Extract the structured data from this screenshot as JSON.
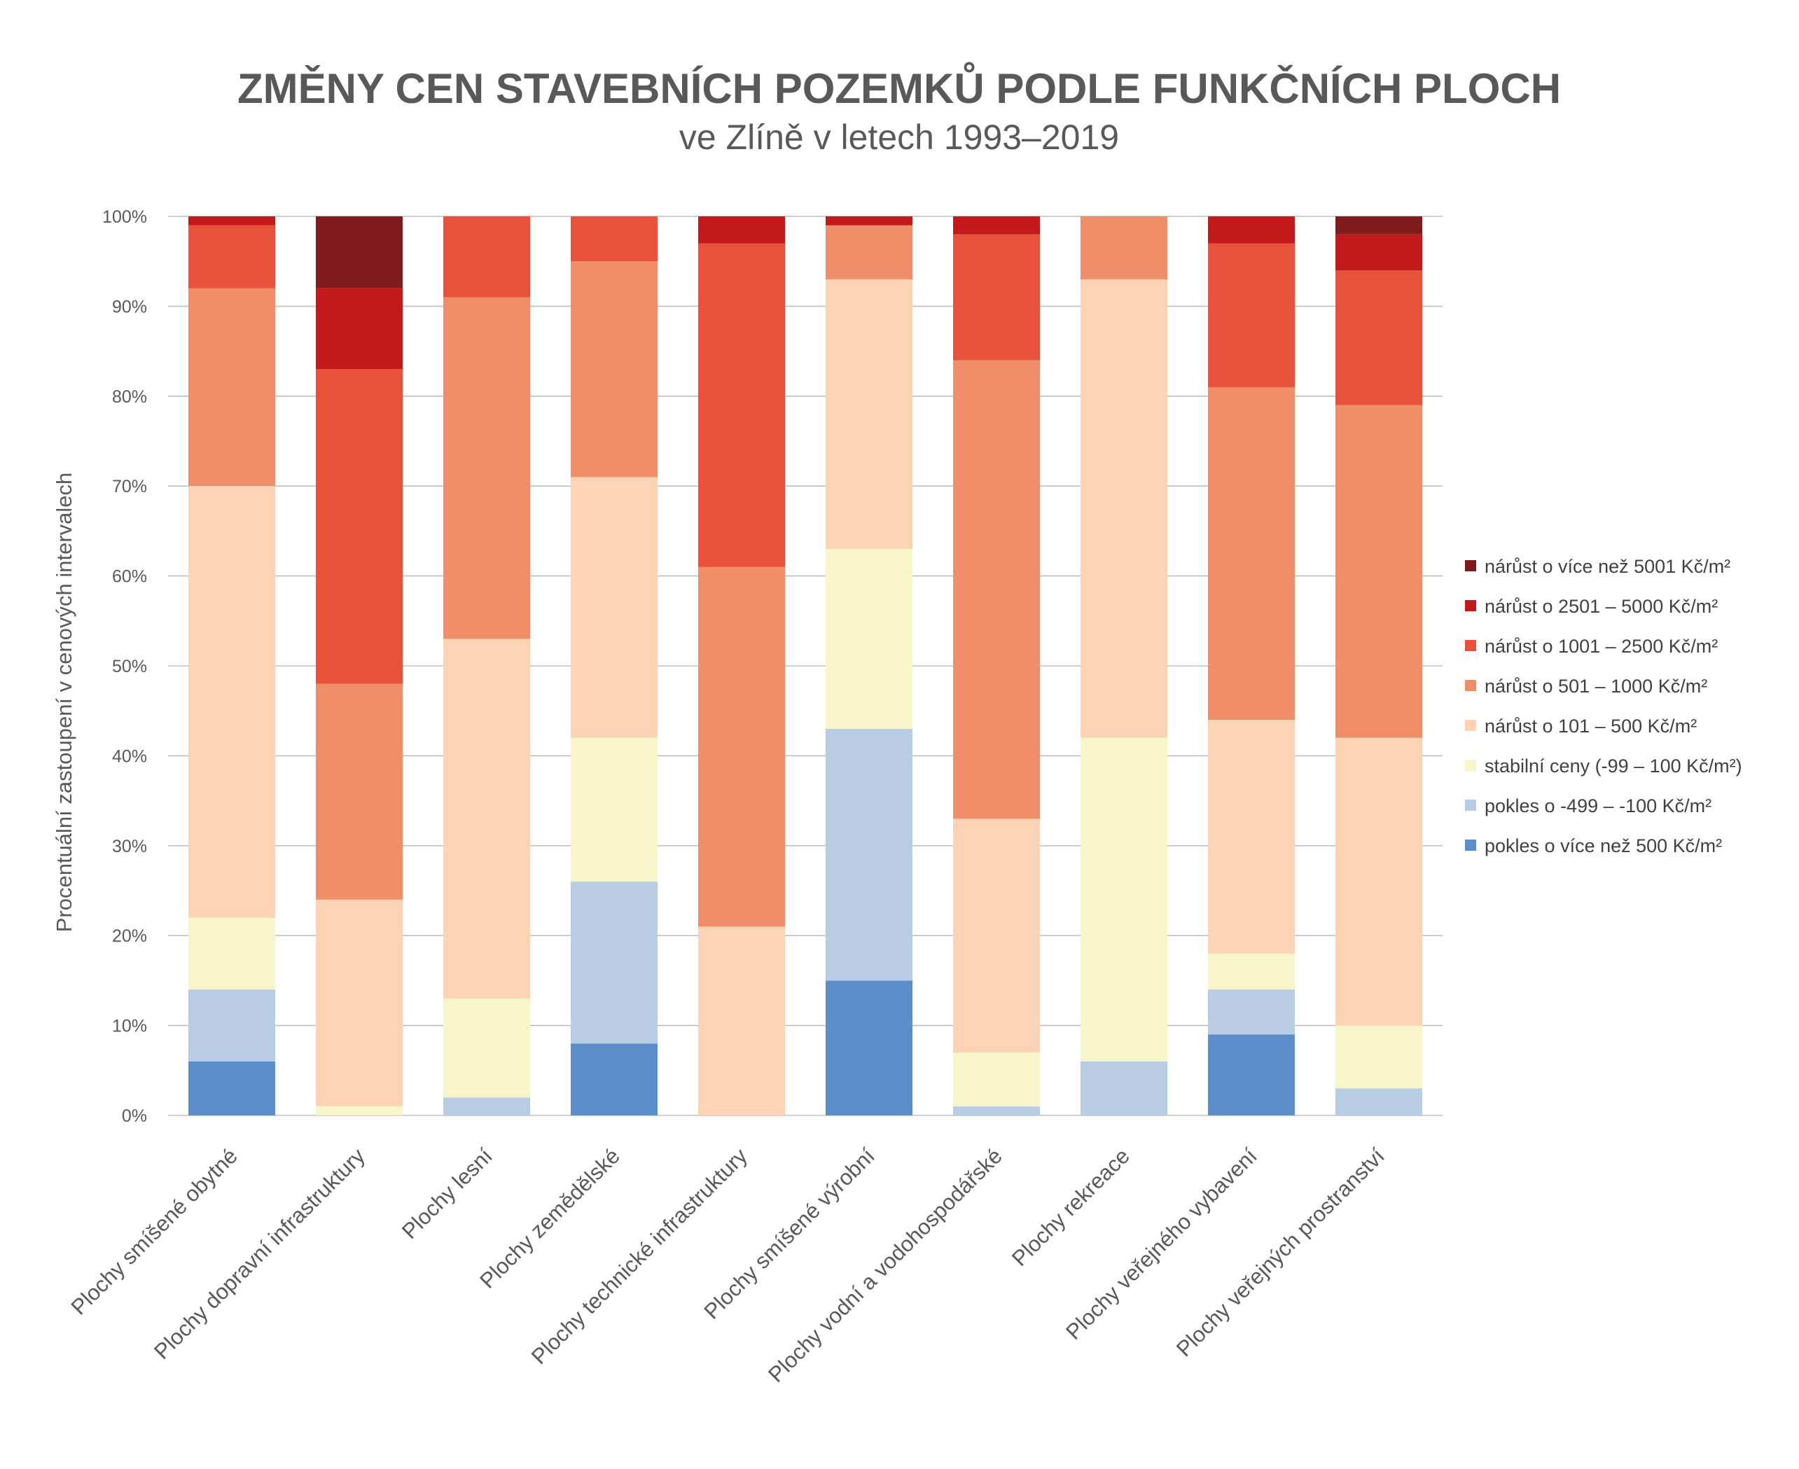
{
  "colors": {
    "text": "#595959",
    "grid": "#bfbfbf",
    "series": [
      "#5b8ecb",
      "#b8cce4",
      "#f8f5cb",
      "#fcd3b4",
      "#f08e69",
      "#e8513a",
      "#c3191b",
      "#7f1a1d"
    ]
  },
  "chart_data": {
    "type": "bar",
    "stacked": true,
    "percent": true,
    "title": "ZMĚNY CEN STAVEBNÍCH POZEMKŮ PODLE FUNKČNÍCH PLOCH",
    "subtitle": "ve Zlíně v letech 1993–2019",
    "ylabel": "Procentuální zastoupení v cenových intervalech",
    "xlabel": "",
    "ylim": [
      0,
      100
    ],
    "yticks": [
      "0%",
      "10%",
      "20%",
      "30%",
      "40%",
      "50%",
      "60%",
      "70%",
      "80%",
      "90%",
      "100%"
    ],
    "grid": true,
    "legend_position": "right",
    "categories": [
      "Plochy smíšené obytné",
      "Plochy dopravní infrastruktury",
      "Plochy lesní",
      "Plochy zemědělské",
      "Plochy technické infrastruktury",
      "Plochy smíšené výrobní",
      "Plochy vodní a vodohospodářské",
      "Plochy rekreace",
      "Plochy veřejného vybavení",
      "Plochy veřejných prostranství"
    ],
    "series": [
      {
        "name": "pokles o více než 500 Kč/m²",
        "values": [
          6,
          0,
          0,
          8,
          0,
          15,
          0,
          0,
          9,
          0
        ]
      },
      {
        "name": "pokles o -499 – -100 Kč/m²",
        "values": [
          8,
          0,
          2,
          18,
          0,
          28,
          1,
          6,
          5,
          3
        ]
      },
      {
        "name": "stabilní ceny (-99 – 100 Kč/m²)",
        "values": [
          8,
          1,
          11,
          16,
          0,
          20,
          6,
          36,
          4,
          7
        ]
      },
      {
        "name": "nárůst o 101 – 500 Kč/m²",
        "values": [
          48,
          23,
          40,
          29,
          21,
          30,
          26,
          51,
          26,
          32
        ]
      },
      {
        "name": "nárůst o 501 – 1000 Kč/m²",
        "values": [
          22,
          24,
          38,
          24,
          40,
          6,
          51,
          7,
          37,
          37
        ]
      },
      {
        "name": "nárůst o 1001 – 2500 Kč/m²",
        "values": [
          7,
          35,
          9,
          5,
          36,
          0,
          14,
          0,
          16,
          15
        ]
      },
      {
        "name": "nárůst o 2501 – 5000 Kč/m²",
        "values": [
          1,
          9,
          0,
          0,
          3,
          1,
          2,
          0,
          3,
          4
        ]
      },
      {
        "name": "nárůst o více než 5001 Kč/m²",
        "values": [
          0,
          8,
          0,
          0,
          0,
          0,
          0,
          0,
          0,
          2
        ]
      }
    ],
    "legend_order": [
      7,
      6,
      5,
      4,
      3,
      2,
      1,
      0
    ]
  }
}
